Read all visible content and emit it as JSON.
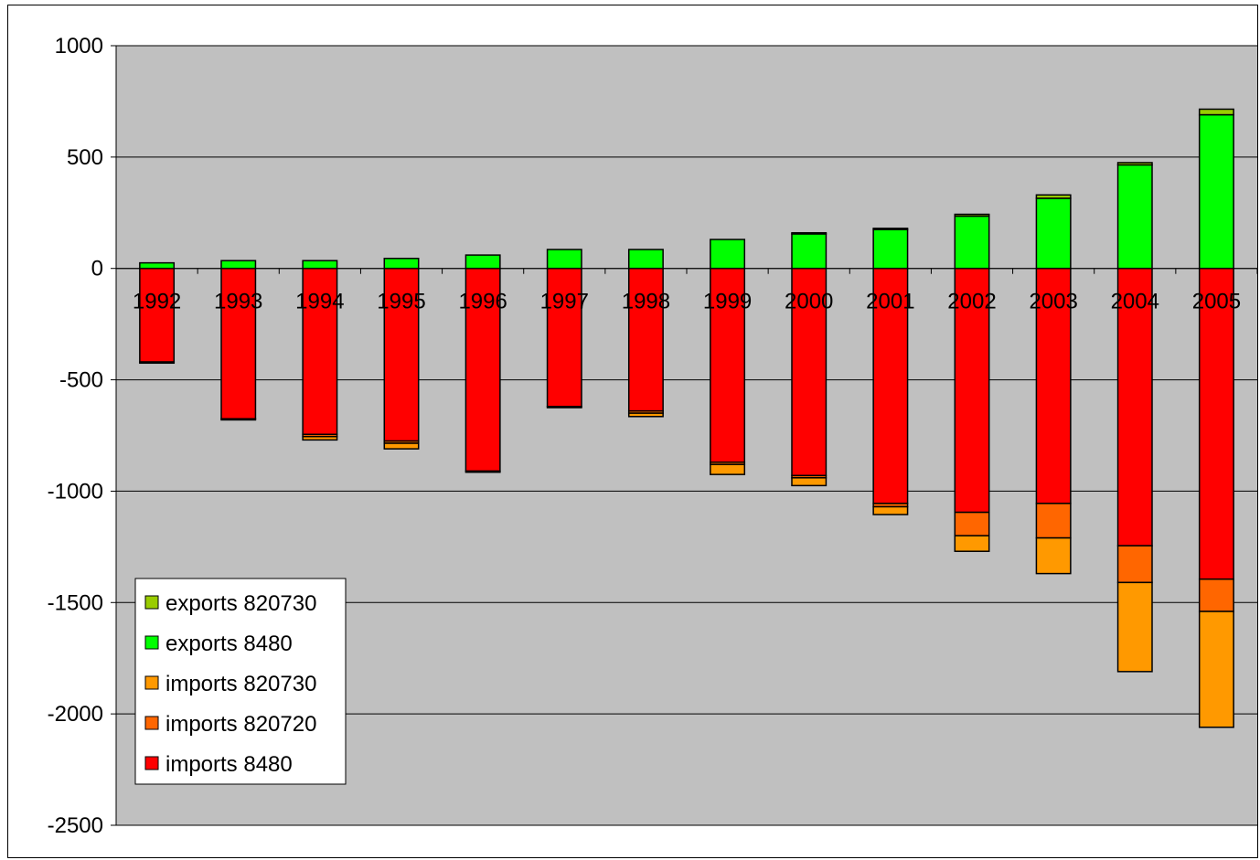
{
  "chart_data": {
    "type": "bar",
    "stacked": true,
    "categories": [
      "1992",
      "1993",
      "1994",
      "1995",
      "1996",
      "1997",
      "1998",
      "1999",
      "2000",
      "2001",
      "2002",
      "2003",
      "2004",
      "2005"
    ],
    "ylim": [
      -2500,
      1000
    ],
    "yticks": [
      "1000",
      "500",
      "0",
      "-500",
      "-1000",
      "-1500",
      "-2000",
      "-2500"
    ],
    "ytick_values": [
      1000,
      500,
      0,
      -500,
      -1000,
      -1500,
      -2000,
      -2500
    ],
    "grid": true,
    "legend_position": "bottom-left",
    "title": "",
    "xlabel": "",
    "ylabel": "",
    "plot_background": "#c0c0c0",
    "series": [
      {
        "name": "exports 820730",
        "color": "#99cc00",
        "group": "positive",
        "values": [
          0,
          0,
          0,
          0,
          0,
          0,
          0,
          0,
          5,
          5,
          8,
          15,
          10,
          25
        ]
      },
      {
        "name": "exports 8480",
        "color": "#00ff00",
        "group": "positive",
        "values": [
          25,
          35,
          35,
          45,
          60,
          85,
          85,
          130,
          155,
          175,
          235,
          315,
          465,
          690
        ]
      },
      {
        "name": "imports 820730",
        "color": "#ff9900",
        "group": "negative",
        "values": [
          0,
          0,
          -15,
          -25,
          0,
          0,
          -15,
          -45,
          -35,
          -35,
          -70,
          -160,
          -400,
          -520
        ]
      },
      {
        "name": "imports 820720",
        "color": "#ff6600",
        "group": "negative",
        "values": [
          -5,
          -5,
          -10,
          -10,
          -5,
          -5,
          -10,
          -10,
          -10,
          -15,
          -105,
          -155,
          -165,
          -145
        ]
      },
      {
        "name": "imports 8480",
        "color": "#ff0000",
        "group": "negative",
        "values": [
          -420,
          -675,
          -745,
          -775,
          -910,
          -620,
          -640,
          -870,
          -930,
          -1055,
          -1095,
          -1055,
          -1245,
          -1395
        ]
      }
    ],
    "legend_order": [
      "exports 820730",
      "exports 8480",
      "imports 820730",
      "imports 820720",
      "imports 8480"
    ]
  }
}
